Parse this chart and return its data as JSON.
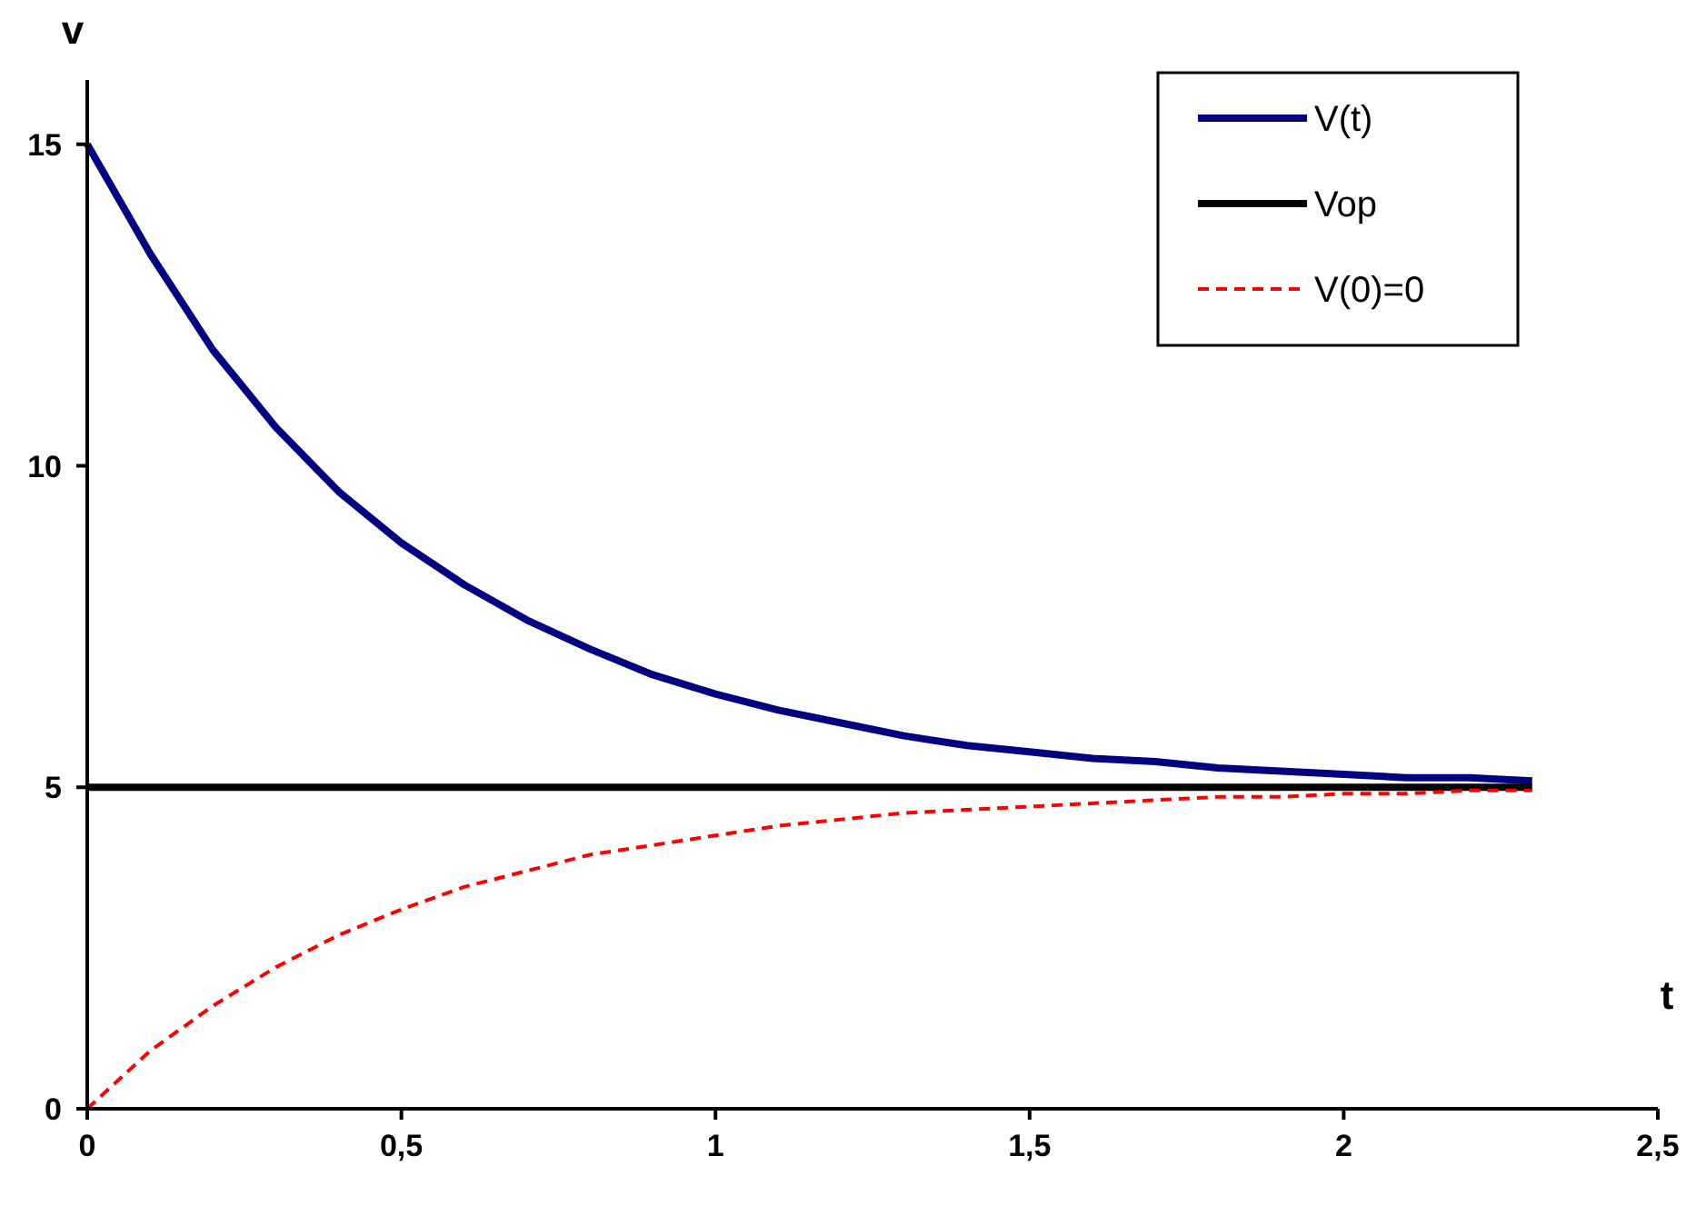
{
  "chart_data": {
    "type": "line",
    "xlabel": "t",
    "ylabel": "v",
    "x": [
      0,
      0.1,
      0.2,
      0.3,
      0.4,
      0.5,
      0.6,
      0.7,
      0.8,
      0.9,
      1,
      1.1,
      1.2,
      1.3,
      1.4,
      1.5,
      1.6,
      1.7,
      1.8,
      1.9,
      2,
      2.1,
      2.2,
      2.3
    ],
    "series": [
      {
        "name": "V(t)",
        "color": "#000080",
        "line_style": "solid",
        "values": [
          15,
          13.3,
          11.8,
          10.6,
          9.6,
          8.8,
          8.15,
          7.6,
          7.15,
          6.75,
          6.45,
          6.2,
          6,
          5.8,
          5.65,
          5.55,
          5.45,
          5.4,
          5.3,
          5.25,
          5.2,
          5.15,
          5.15,
          5.1
        ]
      },
      {
        "name": "Vop",
        "color": "#000000",
        "line_style": "solid",
        "values": [
          5,
          5,
          5,
          5,
          5,
          5,
          5,
          5,
          5,
          5,
          5,
          5,
          5,
          5,
          5,
          5,
          5,
          5,
          5,
          5,
          5,
          5,
          5,
          5
        ]
      },
      {
        "name": "V(0)=0",
        "color": "#ff0000",
        "line_style": "dashed",
        "values": [
          0,
          0.9,
          1.6,
          2.2,
          2.7,
          3.1,
          3.45,
          3.7,
          3.95,
          4.1,
          4.25,
          4.4,
          4.5,
          4.6,
          4.65,
          4.7,
          4.75,
          4.8,
          4.85,
          4.85,
          4.9,
          4.9,
          4.95,
          4.95
        ]
      }
    ],
    "xlim": [
      0,
      2.5
    ],
    "xticks": [
      0,
      {
        "value": 0.5,
        "label": "0,5"
      },
      1,
      {
        "value": 1.5,
        "label": "1,5"
      },
      2,
      {
        "value": 2.5,
        "label": "2,5"
      }
    ],
    "ylim": [
      0,
      16
    ],
    "yticks": [
      0,
      5,
      10,
      15
    ],
    "grid": false,
    "legend": "top right",
    "marker": "none"
  }
}
